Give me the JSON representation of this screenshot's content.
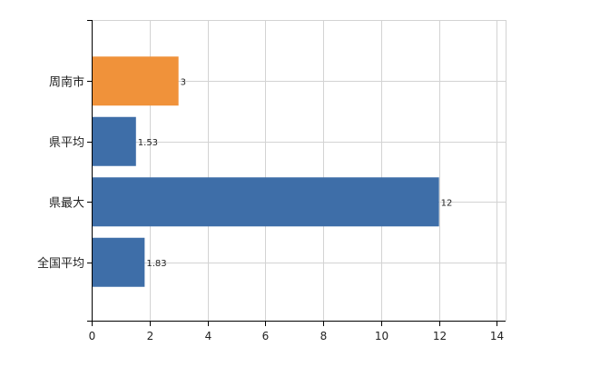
{
  "chart_data": {
    "type": "bar",
    "orientation": "horizontal",
    "categories": [
      "周南市",
      "県平均",
      "県最大",
      "全国平均"
    ],
    "values": [
      3,
      1.53,
      12,
      1.83
    ],
    "value_labels": [
      "3",
      "1.53",
      "12",
      "1.83"
    ],
    "bar_colors": [
      "#f0923a",
      "#3e6ea8",
      "#3e6ea8",
      "#3e6ea8"
    ],
    "highlight_color": "#f0923a",
    "base_color": "#3e6ea8",
    "xlim": [
      0,
      14.3
    ],
    "xticks": [
      0,
      2,
      4,
      6,
      8,
      10,
      12,
      14
    ],
    "xtick_labels": [
      "0",
      "2",
      "4",
      "6",
      "8",
      "10",
      "12",
      "14"
    ],
    "grid": true,
    "grid_color": "#d3d3d3",
    "axis_color": "#000000",
    "title": "",
    "xlabel": "",
    "ylabel": ""
  }
}
